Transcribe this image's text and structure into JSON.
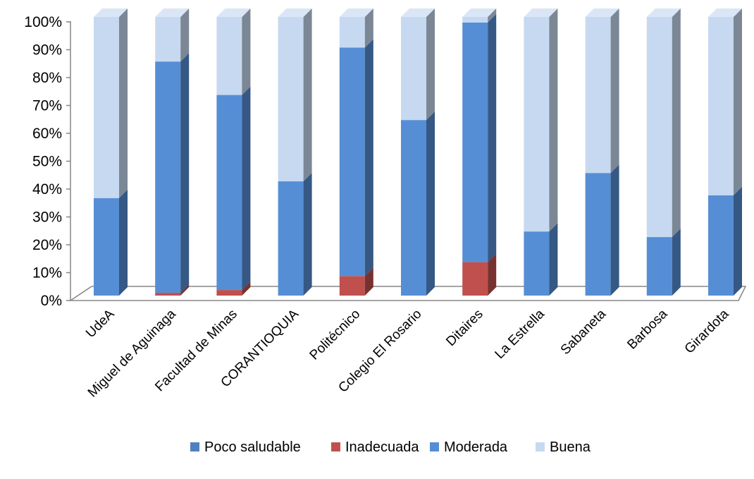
{
  "chart_data": {
    "type": "bar",
    "stacked": true,
    "percent_stacked": true,
    "three_d": true,
    "categories": [
      "UdeA",
      "Miguel de Aguinaga",
      "Facultad de Minas",
      "CORANTIOQUIA",
      "Politécnico",
      "Colegio El Rosario",
      "Ditaires",
      "La Estrella",
      "Sabaneta",
      "Barbosa",
      "Girardota"
    ],
    "series": [
      {
        "name": "Poco saludable",
        "color": "#4F81BD",
        "values": [
          0,
          0,
          0,
          0,
          0,
          0,
          0,
          0,
          0,
          0,
          0
        ]
      },
      {
        "name": "Inadecuada",
        "color": "#C0504D",
        "values": [
          0,
          1,
          2,
          0,
          7,
          0,
          12,
          0,
          0,
          0,
          0
        ]
      },
      {
        "name": "Moderada",
        "color": "#558ED5",
        "values": [
          35,
          83,
          70,
          41,
          82,
          63,
          86,
          23,
          44,
          21,
          36
        ]
      },
      {
        "name": "Buena",
        "color": "#C6D9F1",
        "values": [
          65,
          16,
          28,
          59,
          11,
          37,
          2,
          77,
          56,
          79,
          64
        ]
      }
    ],
    "y_ticks": [
      "0%",
      "10%",
      "20%",
      "30%",
      "40%",
      "50%",
      "60%",
      "70%",
      "80%",
      "90%",
      "100%"
    ],
    "ylim": [
      0,
      100
    ],
    "grid": false,
    "legend_position": "bottom"
  }
}
